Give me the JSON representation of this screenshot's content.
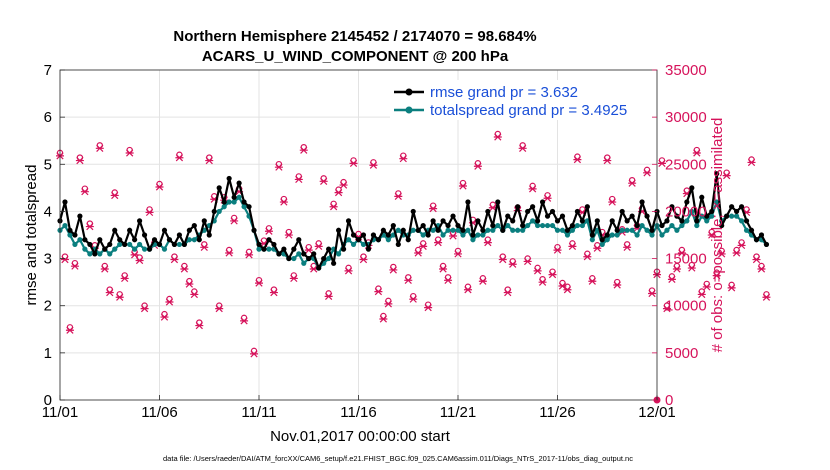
{
  "chart_data": {
    "type": "line",
    "title": "Northern Hemisphere 2145452 / 2174070 = 98.684%",
    "subtitle": "ACARS_U_WIND_COMPONENT @ 200 hPa",
    "xlabel": "Nov.01,2017 00:00:00 start",
    "ylabel": "rmse and totalspread",
    "ylabel_right": "# of obs: o=possible; ×=assimilated",
    "footer": "data file: /Users/raeder/DAI/ATM_forcXX/CAM6_setup/f.e21.FHIST_BGC.f09_025.CAM6assim.011/Diags_NTrS_2017-11/obs_diag_output.nc",
    "xlim": [
      0,
      30
    ],
    "ylim": [
      0,
      7
    ],
    "ylim_right": [
      0,
      35000
    ],
    "x_tick_values": [
      0,
      5,
      10,
      15,
      20,
      25,
      30
    ],
    "x_tick_labels": [
      "11/01",
      "11/06",
      "11/11",
      "11/16",
      "11/21",
      "11/26",
      "12/01"
    ],
    "y_tick_labels": [
      "0",
      "1",
      "2",
      "3",
      "4",
      "5",
      "6",
      "7"
    ],
    "y_right_tick_labels": [
      "0",
      "5000",
      "10000",
      "15000",
      "20000",
      "25000",
      "30000",
      "35000"
    ],
    "colors": {
      "rmse": "#000000",
      "spread": "#0b7f7f",
      "obs": "#d6135b",
      "legend_text": "#1a4fd8"
    },
    "series": [
      {
        "name": "rmse grand pr = 3.632",
        "x_step": 0.25,
        "values": [
          3.8,
          4.2,
          3.6,
          3.5,
          3.9,
          3.4,
          3.3,
          3.1,
          3.4,
          3.2,
          3.3,
          3.6,
          3.4,
          3.3,
          3.6,
          3.4,
          3.8,
          3.5,
          3.2,
          3.4,
          3.3,
          3.6,
          3.4,
          3.3,
          3.5,
          3.3,
          3.6,
          3.7,
          3.4,
          3.8,
          3.5,
          4.0,
          4.5,
          4.2,
          4.7,
          4.3,
          4.6,
          4.2,
          4.1,
          3.6,
          3.3,
          3.2,
          3.4,
          3.3,
          3.1,
          3.2,
          3.0,
          3.2,
          3.4,
          3.1,
          3.0,
          3.1,
          2.8,
          3.0,
          3.2,
          2.9,
          3.6,
          3.2,
          3.8,
          3.5,
          3.4,
          3.5,
          3.2,
          3.5,
          3.4,
          3.6,
          3.5,
          3.7,
          3.3,
          3.6,
          3.4,
          4.0,
          3.6,
          3.7,
          3.5,
          3.8,
          3.6,
          3.8,
          3.7,
          3.9,
          3.7,
          3.6,
          4.2,
          3.5,
          3.8,
          3.6,
          4.0,
          3.7,
          4.2,
          3.6,
          3.9,
          3.8,
          4.1,
          3.7,
          4.0,
          4.1,
          3.8,
          4.2,
          3.9,
          4.0,
          3.8,
          3.9,
          3.6,
          3.7,
          4.0,
          3.8,
          4.1,
          3.5,
          3.8,
          3.4,
          3.5,
          3.8,
          3.6,
          4.0,
          3.8,
          3.9,
          3.7,
          4.2,
          3.9,
          3.6,
          4.0,
          3.7,
          3.8,
          4.1,
          3.9,
          3.8,
          4.2,
          4.5,
          3.8,
          4.3,
          3.9,
          4.0,
          4.8,
          3.7,
          3.9,
          4.1,
          4.0,
          4.1,
          3.8,
          3.6,
          3.4,
          3.5,
          3.3
        ]
      },
      {
        "name": "totalspread grand pr = 3.4925",
        "x_step": 0.25,
        "values": [
          3.6,
          3.7,
          3.5,
          3.3,
          3.4,
          3.2,
          3.1,
          3.2,
          3.1,
          3.2,
          3.1,
          3.2,
          3.3,
          3.3,
          3.3,
          3.2,
          3.3,
          3.2,
          3.2,
          3.3,
          3.3,
          3.2,
          3.4,
          3.3,
          3.3,
          3.3,
          3.4,
          3.4,
          3.5,
          3.6,
          3.7,
          3.8,
          4.0,
          4.1,
          4.2,
          4.2,
          4.3,
          4.1,
          3.9,
          3.6,
          3.2,
          3.2,
          3.2,
          3.2,
          3.1,
          3.1,
          3.0,
          3.0,
          3.1,
          2.9,
          3.0,
          3.0,
          2.8,
          2.9,
          3.0,
          3.2,
          3.1,
          3.3,
          3.4,
          3.3,
          3.4,
          3.3,
          3.3,
          3.4,
          3.4,
          3.5,
          3.4,
          3.5,
          3.6,
          3.5,
          3.5,
          3.6,
          3.6,
          3.5,
          3.6,
          3.6,
          3.7,
          3.5,
          3.6,
          3.6,
          3.6,
          3.5,
          3.6,
          3.4,
          3.5,
          3.5,
          3.6,
          3.6,
          3.7,
          3.6,
          3.7,
          3.6,
          3.6,
          3.6,
          3.7,
          3.8,
          3.7,
          3.7,
          3.7,
          3.7,
          3.6,
          3.6,
          3.5,
          3.6,
          3.7,
          3.7,
          3.8,
          3.4,
          3.6,
          3.3,
          3.4,
          3.5,
          3.5,
          3.6,
          3.6,
          3.6,
          3.5,
          3.7,
          3.6,
          3.5,
          3.7,
          3.5,
          3.6,
          3.7,
          3.6,
          3.7,
          3.8,
          4.0,
          3.7,
          3.9,
          3.8,
          3.9,
          4.2,
          3.8,
          3.9,
          3.9,
          3.9,
          3.8,
          3.6,
          3.5,
          3.4,
          3.4,
          3.3
        ]
      },
      {
        "name": "obs possible",
        "marker": "o",
        "x_step": 0.25,
        "values": [
          26000,
          15000,
          7500,
          14300,
          25500,
          22200,
          18500,
          16200,
          26800,
          14000,
          11500,
          21800,
          11000,
          13000,
          26300,
          15500,
          14900,
          9800,
          20000,
          16500,
          22700,
          8900,
          10500,
          15000,
          25800,
          14000,
          12400,
          11300,
          8000,
          16300,
          25500,
          21400,
          9800,
          21300,
          15700,
          19100,
          22200,
          8500,
          15500,
          5000,
          12500,
          16700,
          18000,
          11500,
          24800,
          21100,
          17600,
          13000,
          23500,
          26600,
          16000,
          14000,
          16400,
          23300,
          11100,
          20600,
          22100,
          22900,
          13800,
          25200,
          17400,
          15000,
          16500,
          25000,
          11600,
          8700,
          10300,
          13900,
          21700,
          25700,
          12800,
          10800,
          15700,
          16400,
          9900,
          20400,
          16800,
          14000,
          12800,
          17500,
          15600,
          22800,
          11800,
          18900,
          24900,
          12700,
          16800,
          20500,
          28000,
          15000,
          11500,
          14500,
          20200,
          26800,
          14800,
          22500,
          13800,
          12600,
          21500,
          13400,
          16000,
          12200,
          11800,
          16400,
          25600,
          20000,
          15300,
          12700,
          16200,
          17600,
          25500,
          21100,
          12300,
          17900,
          16300,
          23100,
          18300,
          20100,
          24200,
          11400,
          13400,
          25200,
          9800,
          12900,
          14000,
          15700,
          22000,
          14100,
          26300,
          11300,
          12100,
          17600,
          13300,
          15600,
          23900,
          12000,
          15700,
          16500,
          20000,
          25300,
          15000,
          14000,
          11000
        ]
      }
    ]
  },
  "legend": {
    "rmse_label": "rmse grand pr = 3.632",
    "spread_label": "totalspread grand pr = 3.4925"
  }
}
